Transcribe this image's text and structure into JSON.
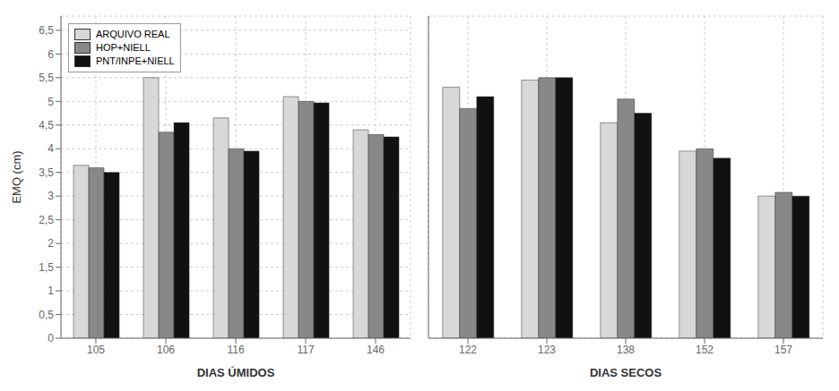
{
  "chart_data": [
    {
      "type": "bar",
      "xlabel": "DIAS ÚMIDOS",
      "ylabel": "EMQ (cm)",
      "categories": [
        "105",
        "106",
        "116",
        "117",
        "146"
      ],
      "series": [
        {
          "name": "ARQUIVO REAL",
          "color": "#d8d8d8",
          "values": [
            3.65,
            5.5,
            4.65,
            5.1,
            4.4
          ]
        },
        {
          "name": "HOP+NIELL",
          "color": "#888888",
          "values": [
            3.6,
            4.35,
            4.0,
            5.0,
            4.3
          ]
        },
        {
          "name": "PNT/INPE+NIELL",
          "color": "#111111",
          "values": [
            3.5,
            4.55,
            3.95,
            4.97,
            4.25
          ]
        }
      ],
      "ylim": [
        0,
        6.8
      ],
      "yticks": [
        0,
        {
          "value": 0.5,
          "label": "0,5"
        },
        1,
        {
          "value": 1.5,
          "label": "1,5"
        },
        2,
        {
          "value": 2.5,
          "label": "2,5"
        },
        3,
        {
          "value": 3.5,
          "label": "3,5"
        },
        4,
        {
          "value": 4.5,
          "label": "4,5"
        },
        5,
        {
          "value": 5.5,
          "label": "5,5"
        },
        6,
        {
          "value": 6.5,
          "label": "6,5"
        }
      ],
      "grid": true,
      "legend": "upper left"
    },
    {
      "type": "bar",
      "xlabel": "DIAS SECOS",
      "categories": [
        "122",
        "123",
        "138",
        "152",
        "157"
      ],
      "series": [
        {
          "name": "ARQUIVO REAL",
          "color": "#d8d8d8",
          "values": [
            5.3,
            5.45,
            4.55,
            3.95,
            3.0
          ]
        },
        {
          "name": "HOP+NIELL",
          "color": "#888888",
          "values": [
            4.85,
            5.5,
            5.05,
            4.0,
            3.08
          ]
        },
        {
          "name": "PNT/INPE+NIELL",
          "color": "#111111",
          "values": [
            5.1,
            5.5,
            4.75,
            3.8,
            3.0
          ]
        }
      ],
      "ylim": [
        0,
        6.8
      ],
      "yticks": [
        0,
        {
          "value": 0.5,
          "label": "0,5"
        },
        1,
        {
          "value": 1.5,
          "label": "1,5"
        },
        2,
        {
          "value": 2.5,
          "label": "2,5"
        },
        3,
        {
          "value": 3.5,
          "label": "3,5"
        },
        4,
        {
          "value": 4.5,
          "label": "4,5"
        },
        5,
        {
          "value": 5.5,
          "label": "5,5"
        },
        6,
        {
          "value": 6.5,
          "label": "6,5"
        }
      ],
      "grid": true,
      "tick_labels": "x"
    }
  ]
}
